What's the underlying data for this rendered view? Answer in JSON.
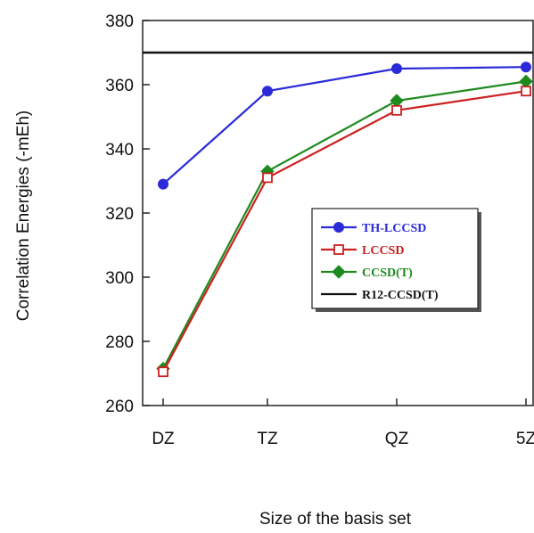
{
  "chart_data": {
    "type": "line",
    "xlabel": "Size of the basis set",
    "ylabel": "Correlation Energies (-mEh)",
    "categories": [
      "DZ",
      "TZ",
      "QZ",
      "5Z"
    ],
    "ylim": [
      260,
      380
    ],
    "yticks": [
      260,
      280,
      300,
      320,
      340,
      360,
      380
    ],
    "grid": false,
    "legend_position": "center-right",
    "series": [
      {
        "name": "TH-LCCSD",
        "values": [
          329,
          358,
          365,
          365.5
        ],
        "color": "#2a2ad8",
        "marker": "filled-circle"
      },
      {
        "name": "LCCSD",
        "values": [
          270.5,
          331,
          352,
          358
        ],
        "color": "#cc2020",
        "marker": "open-square"
      },
      {
        "name": "CCSD(T)",
        "values": [
          271.5,
          333,
          355,
          361
        ],
        "color": "#1e8a1e",
        "marker": "filled-diamond"
      },
      {
        "name": "R12-CCSD(T)",
        "values": [
          370,
          370,
          370,
          370
        ],
        "color": "#111111",
        "marker": "none",
        "style": "horizontal-reference"
      }
    ]
  }
}
